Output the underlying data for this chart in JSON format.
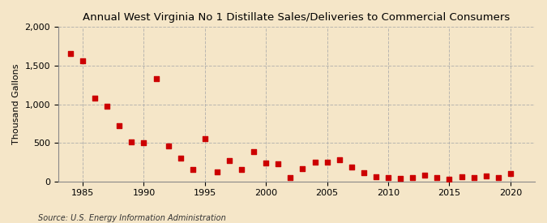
{
  "title": "Annual West Virginia No 1 Distillate Sales/Deliveries to Commercial Consumers",
  "ylabel": "Thousand Gallons",
  "source": "Source: U.S. Energy Information Administration",
  "background_color": "#f5e6c8",
  "marker_color": "#cc0000",
  "years": [
    1984,
    1985,
    1986,
    1987,
    1988,
    1989,
    1990,
    1991,
    1992,
    1993,
    1994,
    1995,
    1996,
    1997,
    1998,
    1999,
    2000,
    2001,
    2002,
    2003,
    2004,
    2005,
    2006,
    2007,
    2008,
    2009,
    2010,
    2011,
    2012,
    2013,
    2014,
    2015,
    2016,
    2017,
    2018,
    2019,
    2020
  ],
  "values": [
    1660,
    1560,
    1080,
    975,
    720,
    510,
    500,
    1330,
    460,
    300,
    160,
    550,
    120,
    275,
    155,
    390,
    235,
    225,
    50,
    165,
    250,
    245,
    280,
    185,
    110,
    65,
    45,
    40,
    55,
    80,
    55,
    30,
    65,
    50,
    75,
    50,
    100
  ],
  "xlim": [
    1983,
    2022
  ],
  "ylim": [
    0,
    2000
  ],
  "yticks": [
    0,
    500,
    1000,
    1500,
    2000
  ],
  "xticks": [
    1985,
    1990,
    1995,
    2000,
    2005,
    2010,
    2015,
    2020
  ]
}
